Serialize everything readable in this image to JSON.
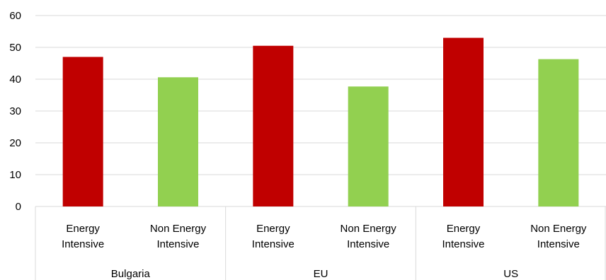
{
  "chart_data": {
    "type": "bar",
    "title": "",
    "xlabel": "",
    "ylabel": "",
    "ylim": [
      0,
      60
    ],
    "yticks": [
      0,
      10,
      20,
      30,
      40,
      50,
      60
    ],
    "grid": true,
    "legend": "none",
    "groups": [
      {
        "label": "Bulgaria",
        "bars": [
          {
            "label_lines": [
              "Energy",
              "Intensive"
            ],
            "value": 47,
            "color": "#c00000"
          },
          {
            "label_lines": [
              "Non Energy",
              "Intensive"
            ],
            "value": 40.6,
            "color": "#92d050"
          }
        ]
      },
      {
        "label": "EU",
        "bars": [
          {
            "label_lines": [
              "Energy",
              "Intensive"
            ],
            "value": 50.5,
            "color": "#c00000"
          },
          {
            "label_lines": [
              "Non Energy",
              "Intensive"
            ],
            "value": 37.7,
            "color": "#92d050"
          }
        ]
      },
      {
        "label": "US",
        "bars": [
          {
            "label_lines": [
              "Energy",
              "Intensive"
            ],
            "value": 53,
            "color": "#c00000"
          },
          {
            "label_lines": [
              "Non Energy",
              "Intensive"
            ],
            "value": 46.3,
            "color": "#92d050"
          }
        ]
      }
    ]
  }
}
